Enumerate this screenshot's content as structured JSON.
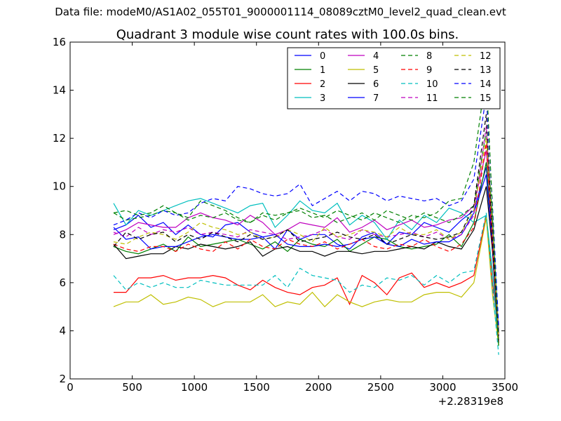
{
  "page": {
    "title": "Data file: modeM0/AS1A02_055T01_9000001114_08089cztM0_level2_quad_clean.evt"
  },
  "chart_data": {
    "type": "line",
    "title": "Quadrant 3 module wise count rates with 100.0s bins.",
    "xlabel": "",
    "ylabel": "",
    "x_offset_label": "+2.28319e8",
    "xlim": [
      0,
      3500
    ],
    "ylim": [
      2,
      16
    ],
    "x_ticks": [
      0,
      500,
      1000,
      1500,
      2000,
      2500,
      3000,
      3500
    ],
    "y_ticks": [
      2,
      4,
      6,
      8,
      10,
      12,
      14,
      16
    ],
    "grid": false,
    "legend_position": "top-right",
    "legend_columns": 4,
    "x": [
      350,
      450,
      550,
      650,
      750,
      850,
      950,
      1050,
      1150,
      1250,
      1350,
      1450,
      1550,
      1650,
      1750,
      1850,
      1950,
      2050,
      2150,
      2250,
      2350,
      2450,
      2550,
      2650,
      2750,
      2850,
      2950,
      3050,
      3150,
      3250,
      3350,
      3400,
      3450
    ],
    "series": [
      {
        "name": "0",
        "color": "#0000ff",
        "dash": "solid",
        "values": [
          8.2,
          8.4,
          8.8,
          8.3,
          8.5,
          8.0,
          8.4,
          8.0,
          7.9,
          8.4,
          8.5,
          8.1,
          7.9,
          7.4,
          8.2,
          7.8,
          8.0,
          8.0,
          7.6,
          7.4,
          7.9,
          8.1,
          7.6,
          8.1,
          8.0,
          8.5,
          8.3,
          8.1,
          8.6,
          9.0,
          10.8,
          8.0,
          4.0
        ]
      },
      {
        "name": "1",
        "color": "#008000",
        "dash": "solid",
        "values": [
          7.5,
          7.3,
          7.2,
          7.4,
          7.6,
          7.3,
          7.9,
          7.5,
          7.6,
          7.7,
          7.8,
          7.6,
          7.4,
          7.7,
          7.3,
          7.8,
          7.6,
          7.5,
          7.8,
          7.3,
          7.6,
          7.9,
          7.8,
          7.5,
          7.4,
          7.5,
          7.6,
          8.0,
          7.5,
          8.5,
          11.0,
          7.5,
          3.6
        ]
      },
      {
        "name": "2",
        "color": "#ff0000",
        "dash": "solid",
        "values": [
          5.6,
          5.6,
          6.2,
          6.2,
          6.3,
          6.1,
          6.2,
          6.2,
          6.3,
          6.2,
          5.9,
          5.7,
          6.1,
          5.8,
          5.6,
          5.5,
          5.8,
          5.9,
          6.2,
          5.1,
          6.3,
          6.0,
          5.5,
          6.2,
          6.4,
          5.8,
          6.0,
          5.8,
          6.0,
          6.3,
          8.8,
          6.0,
          3.9
        ]
      },
      {
        "name": "3",
        "color": "#00bfbf",
        "dash": "solid",
        "values": [
          9.3,
          8.4,
          9.0,
          8.8,
          9.0,
          9.2,
          9.4,
          9.5,
          9.3,
          9.1,
          8.9,
          9.2,
          9.3,
          8.3,
          8.8,
          9.4,
          9.0,
          8.9,
          9.3,
          8.4,
          8.8,
          8.5,
          7.8,
          8.6,
          8.2,
          8.8,
          8.5,
          9.1,
          8.9,
          8.5,
          8.8,
          6.5,
          3.4
        ]
      },
      {
        "name": "4",
        "color": "#bf00bf",
        "dash": "solid",
        "values": [
          8.0,
          8.2,
          8.5,
          8.4,
          8.3,
          8.3,
          8.7,
          8.9,
          8.7,
          8.6,
          8.4,
          8.8,
          8.5,
          8.0,
          8.2,
          8.5,
          8.4,
          8.3,
          8.7,
          8.1,
          8.3,
          8.6,
          8.2,
          8.4,
          8.6,
          8.3,
          8.4,
          8.6,
          8.7,
          9.2,
          11.5,
          8.2,
          3.7
        ]
      },
      {
        "name": "5",
        "color": "#bfbf00",
        "dash": "solid",
        "values": [
          5.0,
          5.2,
          5.2,
          5.5,
          5.1,
          5.2,
          5.4,
          5.3,
          5.0,
          5.2,
          5.2,
          5.2,
          5.5,
          5.0,
          5.2,
          5.1,
          5.6,
          5.0,
          5.5,
          5.2,
          5.0,
          5.2,
          5.3,
          5.2,
          5.2,
          5.5,
          5.6,
          5.6,
          5.4,
          6.0,
          8.7,
          5.5,
          3.4
        ]
      },
      {
        "name": "6",
        "color": "#000000",
        "dash": "solid",
        "values": [
          7.6,
          7.0,
          7.1,
          7.2,
          7.2,
          7.5,
          7.4,
          7.6,
          7.5,
          7.4,
          7.5,
          7.7,
          7.1,
          7.4,
          7.5,
          7.3,
          7.3,
          7.1,
          7.3,
          7.3,
          7.2,
          7.3,
          7.3,
          7.4,
          7.5,
          7.4,
          7.7,
          7.5,
          7.4,
          8.2,
          10.0,
          7.3,
          3.5
        ]
      },
      {
        "name": "7",
        "color": "#0000ff",
        "dash": "solid",
        "values": [
          8.3,
          7.8,
          7.9,
          7.4,
          7.5,
          7.5,
          7.7,
          7.9,
          8.0,
          7.9,
          7.8,
          7.8,
          7.9,
          8.0,
          7.6,
          7.5,
          7.5,
          7.6,
          7.5,
          7.6,
          7.8,
          7.9,
          7.6,
          7.5,
          7.8,
          7.6,
          7.7,
          7.7,
          8.0,
          8.9,
          10.5,
          7.6,
          3.8
        ]
      },
      {
        "name": "8",
        "color": "#008000",
        "dash": "dash",
        "values": [
          8.9,
          8.6,
          8.7,
          8.8,
          9.0,
          8.9,
          8.6,
          8.8,
          8.7,
          8.9,
          8.6,
          8.5,
          8.8,
          8.6,
          8.9,
          9.0,
          8.7,
          8.8,
          8.5,
          8.7,
          8.9,
          8.6,
          9.0,
          8.8,
          8.6,
          8.9,
          8.7,
          8.5,
          8.8,
          9.2,
          12.3,
          8.7,
          3.9
        ]
      },
      {
        "name": "9",
        "color": "#ff0000",
        "dash": "dash",
        "values": [
          7.6,
          7.4,
          7.3,
          7.5,
          7.5,
          7.3,
          7.6,
          7.4,
          7.3,
          7.7,
          7.4,
          7.8,
          7.5,
          7.4,
          7.8,
          7.6,
          7.5,
          7.7,
          7.4,
          7.6,
          7.8,
          7.5,
          7.4,
          7.6,
          7.5,
          7.8,
          7.5,
          7.3,
          7.6,
          8.3,
          11.8,
          7.5,
          3.8
        ]
      },
      {
        "name": "10",
        "color": "#00bfbf",
        "dash": "dash",
        "values": [
          6.3,
          5.7,
          6.0,
          5.8,
          6.0,
          5.8,
          5.8,
          6.1,
          6.0,
          5.9,
          5.9,
          5.9,
          5.9,
          6.3,
          5.8,
          6.6,
          6.3,
          6.2,
          6.1,
          5.6,
          5.9,
          5.8,
          6.2,
          6.1,
          6.3,
          5.9,
          6.3,
          6.0,
          6.4,
          6.5,
          8.9,
          5.8,
          3.0
        ]
      },
      {
        "name": "11",
        "color": "#bf00bf",
        "dash": "dash",
        "values": [
          8.1,
          7.9,
          8.3,
          8.0,
          8.2,
          8.1,
          8.3,
          8.0,
          8.1,
          8.0,
          7.9,
          8.2,
          8.1,
          8.0,
          7.8,
          7.9,
          8.0,
          8.2,
          7.9,
          7.8,
          8.2,
          8.0,
          7.9,
          8.0,
          8.1,
          7.9,
          8.1,
          7.8,
          8.0,
          8.8,
          12.5,
          8.0,
          3.8
        ]
      },
      {
        "name": "12",
        "color": "#bfbf00",
        "dash": "dash",
        "values": [
          7.7,
          7.6,
          7.9,
          8.1,
          8.0,
          7.8,
          8.1,
          8.5,
          8.3,
          8.2,
          8.0,
          8.1,
          7.8,
          7.9,
          8.2,
          8.0,
          7.7,
          8.3,
          7.9,
          8.0,
          8.2,
          8.1,
          7.9,
          8.3,
          8.0,
          8.0,
          8.2,
          7.8,
          8.1,
          9.0,
          12.0,
          8.3,
          3.7
        ]
      },
      {
        "name": "13",
        "color": "#000000",
        "dash": "dash",
        "values": [
          7.5,
          8.1,
          7.8,
          8.0,
          8.1,
          7.7,
          8.0,
          7.8,
          8.1,
          7.9,
          7.7,
          8.0,
          7.8,
          7.9,
          8.2,
          7.7,
          7.8,
          7.9,
          8.1,
          7.9,
          7.8,
          8.0,
          7.6,
          7.8,
          8.0,
          7.9,
          7.8,
          7.9,
          8.1,
          9.2,
          13.0,
          7.8,
          3.8
        ]
      },
      {
        "name": "14",
        "color": "#0000ff",
        "dash": "dash",
        "values": [
          8.4,
          8.6,
          8.9,
          8.7,
          9.0,
          8.8,
          8.9,
          9.3,
          9.5,
          9.4,
          10.0,
          9.9,
          9.7,
          9.6,
          9.7,
          10.1,
          9.2,
          9.5,
          9.8,
          9.4,
          9.8,
          9.7,
          9.4,
          9.6,
          9.5,
          9.4,
          9.5,
          9.2,
          9.4,
          10.3,
          13.8,
          9.2,
          4.2
        ]
      },
      {
        "name": "15",
        "color": "#008000",
        "dash": "dash",
        "values": [
          8.9,
          9.0,
          8.8,
          8.9,
          9.2,
          8.9,
          8.7,
          9.4,
          9.2,
          9.0,
          8.7,
          8.5,
          8.9,
          8.8,
          8.9,
          9.1,
          8.9,
          8.7,
          9.0,
          8.8,
          8.6,
          8.9,
          8.7,
          8.5,
          8.8,
          8.7,
          8.9,
          9.4,
          9.5,
          11.0,
          14.7,
          9.0,
          3.3
        ]
      }
    ]
  }
}
